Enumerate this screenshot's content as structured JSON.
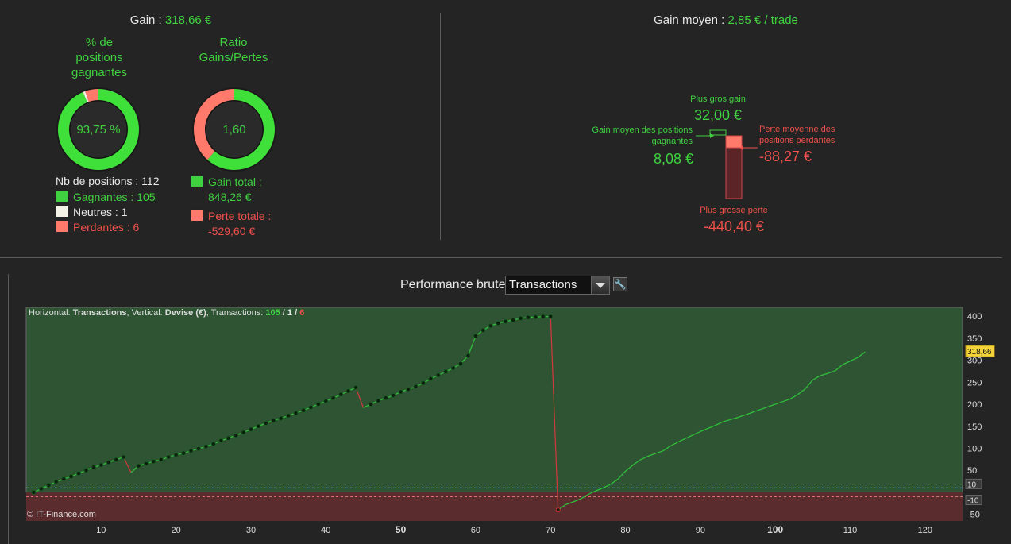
{
  "gain": {
    "label": "Gain : ",
    "value": "318,66 €"
  },
  "gain_moyen": {
    "label": "Gain moyen : ",
    "value": "2,85 € / trade"
  },
  "donut1": {
    "title_lines": [
      "% de",
      "positions",
      "gagnantes"
    ],
    "center": "93,75 %",
    "fraction": 0.9375,
    "neutral_fraction": 0.0089
  },
  "donut2": {
    "title_lines": [
      "Ratio",
      "Gains/Pertes"
    ],
    "center": "1,60",
    "fraction": 0.6156
  },
  "positions": {
    "total_label": "Nb de positions : 112",
    "gagnantes": "Gagnantes : 105",
    "neutres": "Neutres : 1",
    "perdantes": "Perdantes : 6"
  },
  "totals": {
    "gain_line1": "Gain total :",
    "gain_line2": "848,26 €",
    "perte_line1": "Perte totale :",
    "perte_line2": "-529,60 €"
  },
  "boxplot": {
    "plus_gros_gain_label": "Plus gros gain",
    "plus_gros_gain_value": "32,00 €",
    "gain_moyen_label_1": "Gain moyen des positions",
    "gain_moyen_label_2": "gagnantes",
    "gain_moyen_value": "8,08 €",
    "perte_moyenne_label_1": "Perte moyenne des",
    "perte_moyenne_label_2": "positions perdantes",
    "perte_moyenne_value": "-88,27 €",
    "plus_grosse_perte_label": "Plus grosse perte",
    "plus_grosse_perte_value": "-440,40 €"
  },
  "perf": {
    "title": "Performance brute",
    "dropdown_value": "Transactions",
    "wrench_icon": "wrench-icon"
  },
  "chart_header": {
    "h_label": "Horizontal: ",
    "h_value": "Transactions",
    "v_label": ", Vertical: ",
    "v_value": "Devise (€)",
    "t_label": ", Transactions: ",
    "t_win": "105",
    "sep1": " / ",
    "t_neutral": "1",
    "sep2": " / ",
    "t_loss": "6"
  },
  "watermark": "© IT-Finance.com",
  "colors": {
    "green": "#3fd13f",
    "red": "#f0504a",
    "plot_green": "#2f5434",
    "plot_red": "#5a2c2e",
    "last_value_bg": "#f2d43a"
  },
  "chart_data": {
    "type": "line",
    "xlim": [
      0,
      125
    ],
    "ylim": [
      -65,
      420
    ],
    "x_ticks": [
      10,
      20,
      30,
      40,
      50,
      60,
      70,
      80,
      90,
      100,
      110,
      120
    ],
    "x_bold_ticks": [
      50,
      100
    ],
    "y_ticks": [
      400,
      350,
      300,
      250,
      200,
      150,
      100,
      50
    ],
    "threshold_labels": [
      10,
      -10
    ],
    "neg_tick": -50,
    "last_value": "318,66",
    "last_value_num": 318.66,
    "points": [
      [
        1,
        0
      ],
      [
        2,
        8
      ],
      [
        3,
        16
      ],
      [
        4,
        24
      ],
      [
        5,
        30
      ],
      [
        6,
        36
      ],
      [
        7,
        43
      ],
      [
        8,
        50
      ],
      [
        9,
        57
      ],
      [
        10,
        62
      ],
      [
        11,
        68
      ],
      [
        12,
        74
      ],
      [
        13,
        80
      ],
      [
        14,
        45
      ],
      [
        15,
        60
      ],
      [
        16,
        65
      ],
      [
        17,
        70
      ],
      [
        18,
        74
      ],
      [
        19,
        80
      ],
      [
        20,
        85
      ],
      [
        21,
        89
      ],
      [
        22,
        94
      ],
      [
        23,
        99
      ],
      [
        24,
        104
      ],
      [
        25,
        110
      ],
      [
        26,
        117
      ],
      [
        27,
        123
      ],
      [
        28,
        129
      ],
      [
        29,
        136
      ],
      [
        30,
        143
      ],
      [
        31,
        150
      ],
      [
        32,
        157
      ],
      [
        33,
        163
      ],
      [
        34,
        168
      ],
      [
        35,
        174
      ],
      [
        36,
        180
      ],
      [
        37,
        186
      ],
      [
        38,
        193
      ],
      [
        39,
        200
      ],
      [
        40,
        207
      ],
      [
        41,
        214
      ],
      [
        42,
        222
      ],
      [
        43,
        230
      ],
      [
        44,
        238
      ],
      [
        45,
        192
      ],
      [
        46,
        200
      ],
      [
        47,
        208
      ],
      [
        48,
        214
      ],
      [
        49,
        220
      ],
      [
        50,
        228
      ],
      [
        51,
        234
      ],
      [
        52,
        240
      ],
      [
        53,
        248
      ],
      [
        54,
        258
      ],
      [
        55,
        266
      ],
      [
        56,
        274
      ],
      [
        57,
        282
      ],
      [
        58,
        292
      ],
      [
        59,
        310
      ],
      [
        60,
        355
      ],
      [
        61,
        368
      ],
      [
        62,
        378
      ],
      [
        63,
        384
      ],
      [
        64,
        388
      ],
      [
        65,
        391
      ],
      [
        66,
        395
      ],
      [
        67,
        397
      ],
      [
        68,
        398
      ],
      [
        69,
        399
      ],
      [
        70,
        399
      ],
      [
        71,
        -40
      ],
      [
        72,
        -28
      ],
      [
        73,
        -22
      ],
      [
        74,
        -15
      ],
      [
        75,
        -5
      ],
      [
        76,
        3
      ],
      [
        77,
        10
      ],
      [
        78,
        18
      ],
      [
        79,
        30
      ],
      [
        80,
        48
      ],
      [
        81,
        62
      ],
      [
        82,
        74
      ],
      [
        83,
        82
      ],
      [
        84,
        88
      ],
      [
        85,
        94
      ],
      [
        86,
        105
      ],
      [
        87,
        114
      ],
      [
        88,
        122
      ],
      [
        89,
        130
      ],
      [
        90,
        138
      ],
      [
        91,
        145
      ],
      [
        92,
        152
      ],
      [
        93,
        160
      ],
      [
        94,
        165
      ],
      [
        95,
        170
      ],
      [
        96,
        176
      ],
      [
        97,
        182
      ],
      [
        98,
        188
      ],
      [
        99,
        194
      ],
      [
        100,
        200
      ],
      [
        101,
        206
      ],
      [
        102,
        212
      ],
      [
        103,
        222
      ],
      [
        104,
        235
      ],
      [
        105,
        255
      ],
      [
        106,
        265
      ],
      [
        107,
        270
      ],
      [
        108,
        276
      ],
      [
        109,
        290
      ],
      [
        110,
        298
      ],
      [
        111,
        306
      ],
      [
        112,
        318.66
      ]
    ],
    "loss_indices": [
      14,
      45,
      71
    ],
    "dotted_max_x": 71
  }
}
